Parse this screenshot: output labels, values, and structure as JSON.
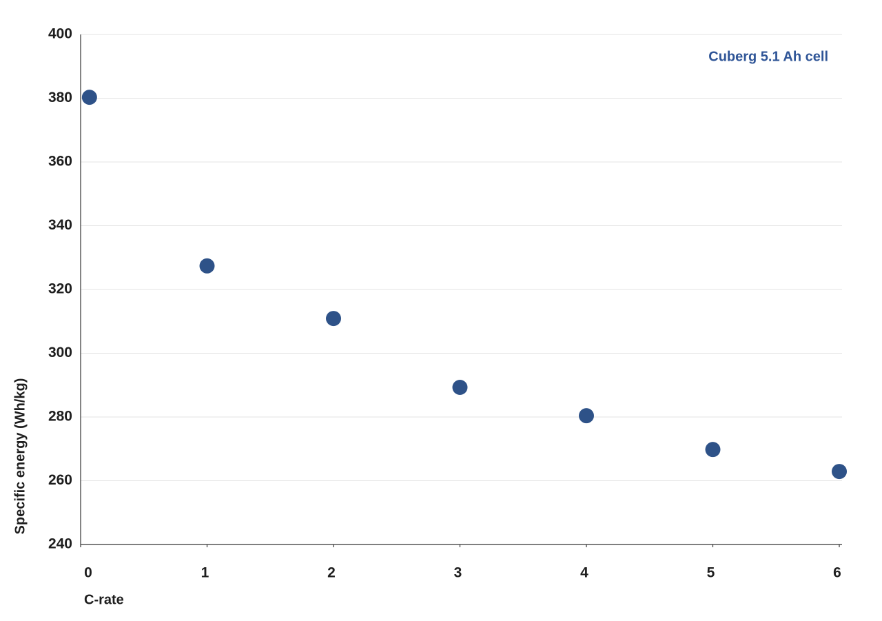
{
  "chart_data": {
    "type": "scatter",
    "annotation": "Cuberg 5.1 Ah cell",
    "x_label": "C-rate",
    "y_label": "Specific energy (Wh/kg)",
    "series": [
      {
        "name": "Cuberg 5.1 Ah cell",
        "color": "#2e5288",
        "x": [
          0.07,
          1,
          2,
          3,
          4,
          5,
          6
        ],
        "values": [
          380.3,
          327.4,
          310.9,
          289.3,
          280.4,
          269.8,
          262.9
        ]
      }
    ],
    "xlim": [
      0,
      6
    ],
    "xticks": [
      0,
      1,
      2,
      3,
      4,
      5,
      6
    ],
    "ylim": [
      240,
      400
    ],
    "yticks": [
      240,
      260,
      280,
      300,
      320,
      340,
      360,
      380,
      400
    ],
    "grid": true
  }
}
